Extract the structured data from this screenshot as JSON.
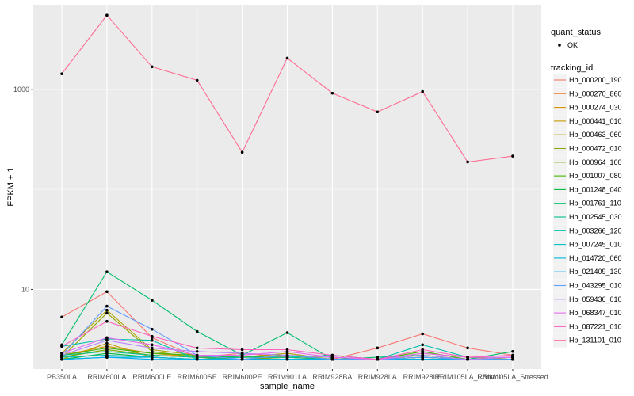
{
  "chart_data": {
    "type": "line",
    "title": "",
    "xlabel": "sample_name",
    "ylabel": "FPKM + 1",
    "y_scale": "log10",
    "ylim": [
      1.6,
      7000
    ],
    "yticks": [
      {
        "value": 10,
        "label": "10"
      },
      {
        "value": 1000,
        "label": "1000"
      }
    ],
    "grid": true,
    "legend_position": "right",
    "categories": [
      "PB350LA",
      "RRIM600LA",
      "RRIM600LE",
      "RRIM600SE",
      "RRIM600PE",
      "RRIM901LA",
      "RRIM928BA",
      "RRIM928LA",
      "RRIM928LE",
      "RRIM105LA_Control",
      "RRIM105LA_Stressed"
    ],
    "quant_status_legend": {
      "title": "quant_status",
      "items": [
        "OK"
      ]
    },
    "tracking_legend_title": "tracking_id",
    "series": [
      {
        "name": "Hb_000200_190",
        "color": "#F8766D",
        "values": [
          5.3,
          9.5,
          3.3,
          2.1,
          2.3,
          2.1,
          2.0,
          2.6,
          3.6,
          2.6,
          2.2
        ]
      },
      {
        "name": "Hb_000270_860",
        "color": "#EC8239",
        "values": [
          2.1,
          2.5,
          2.2,
          2.1,
          2.1,
          2.1,
          2.0,
          2.0,
          2.1,
          2.0,
          2.0
        ]
      },
      {
        "name": "Hb_000274_030",
        "color": "#DB8E00",
        "values": [
          2.2,
          2.7,
          2.3,
          2.1,
          2.0,
          2.2,
          2.0,
          2.0,
          2.2,
          2.0,
          2.0
        ]
      },
      {
        "name": "Hb_000441_010",
        "color": "#C79800",
        "values": [
          2.0,
          2.9,
          2.1,
          2.0,
          2.0,
          2.1,
          2.0,
          2.0,
          2.0,
          2.0,
          2.0
        ]
      },
      {
        "name": "Hb_000463_060",
        "color": "#AFA100",
        "values": [
          2.3,
          6.2,
          2.5,
          2.2,
          2.1,
          2.3,
          2.0,
          2.0,
          2.3,
          2.1,
          2.0
        ]
      },
      {
        "name": "Hb_000472_010",
        "color": "#94A900",
        "values": [
          2.1,
          5.8,
          2.4,
          2.1,
          2.0,
          2.2,
          2.0,
          2.0,
          2.2,
          2.0,
          2.0
        ]
      },
      {
        "name": "Hb_000964_160",
        "color": "#72B000",
        "values": [
          2.1,
          2.5,
          2.2,
          2.1,
          2.0,
          2.1,
          2.0,
          2.0,
          2.1,
          2.0,
          2.0
        ]
      },
      {
        "name": "Hb_001007_080",
        "color": "#3DB700",
        "values": [
          2.2,
          2.6,
          2.3,
          2.2,
          2.1,
          2.2,
          2.1,
          2.0,
          2.4,
          2.0,
          2.1
        ]
      },
      {
        "name": "Hb_001248_040",
        "color": "#00BA38",
        "values": [
          2.0,
          2.3,
          2.1,
          2.0,
          2.0,
          2.0,
          2.0,
          2.0,
          2.0,
          2.0,
          2.0
        ]
      },
      {
        "name": "Hb_001761_110",
        "color": "#00BE6C",
        "values": [
          2.8,
          15.0,
          7.8,
          3.8,
          2.2,
          3.7,
          2.0,
          2.1,
          2.2,
          2.0,
          2.4
        ]
      },
      {
        "name": "Hb_002545_030",
        "color": "#00C08D",
        "values": [
          2.2,
          2.4,
          2.2,
          2.1,
          2.1,
          2.1,
          2.0,
          2.0,
          2.1,
          2.0,
          2.0
        ]
      },
      {
        "name": "Hb_003266_120",
        "color": "#00C0AA",
        "values": [
          2.7,
          3.2,
          3.1,
          2.0,
          2.1,
          2.1,
          2.2,
          2.0,
          2.8,
          2.1,
          2.1
        ]
      },
      {
        "name": "Hb_007245_010",
        "color": "#00BDC4",
        "values": [
          2.1,
          2.2,
          2.1,
          2.0,
          2.0,
          2.0,
          2.0,
          2.0,
          2.0,
          2.0,
          2.0
        ]
      },
      {
        "name": "Hb_014720_060",
        "color": "#00B6DB",
        "values": [
          2.0,
          2.1,
          2.1,
          2.0,
          2.0,
          2.0,
          2.0,
          2.0,
          2.0,
          2.0,
          2.0
        ]
      },
      {
        "name": "Hb_021409_130",
        "color": "#00AEEF",
        "values": [
          2.0,
          2.1,
          2.0,
          2.0,
          2.0,
          2.0,
          2.0,
          2.0,
          2.0,
          2.0,
          2.0
        ]
      },
      {
        "name": "Hb_043295_010",
        "color": "#619CFF",
        "values": [
          2.2,
          6.8,
          4.0,
          2.2,
          2.0,
          2.2,
          2.0,
          2.0,
          2.1,
          2.0,
          2.0
        ]
      },
      {
        "name": "Hb_059436_010",
        "color": "#B983FF",
        "values": [
          2.2,
          3.1,
          2.6,
          2.4,
          2.3,
          2.2,
          2.1,
          2.0,
          2.2,
          2.0,
          2.1
        ]
      },
      {
        "name": "Hb_068347_010",
        "color": "#E76BF3",
        "values": [
          2.3,
          3.3,
          2.8,
          2.2,
          2.2,
          2.4,
          2.1,
          2.0,
          2.3,
          2.1,
          2.1
        ]
      },
      {
        "name": "Hb_087221_010",
        "color": "#FF62BC",
        "values": [
          2.7,
          4.8,
          3.4,
          2.6,
          2.5,
          2.5,
          2.2,
          2.0,
          2.5,
          2.1,
          2.2
        ]
      },
      {
        "name": "Hb_131101_010",
        "color": "#FF6C91",
        "values": [
          1430,
          5500,
          1680,
          1230,
          235,
          2050,
          915,
          595,
          950,
          188,
          215
        ]
      }
    ]
  }
}
